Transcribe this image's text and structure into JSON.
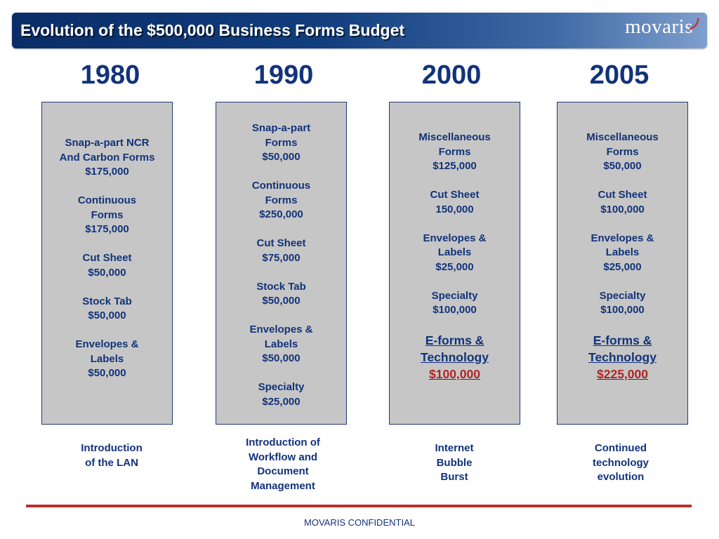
{
  "header": {
    "title": "Evolution of the $500,000 Business Forms Budget",
    "logo": "movaris",
    "colors": {
      "bar_start": "#0a2d67",
      "bar_end": "#7f9fcd",
      "text": "#12337a",
      "highlight_red": "#b02424"
    }
  },
  "columns": [
    {
      "year": "1980",
      "items": [
        {
          "lines": [
            "Snap-a-part NCR",
            "And Carbon Forms",
            "$175,000"
          ]
        },
        {
          "lines": [
            "Continuous",
            "Forms",
            "$175,000"
          ]
        },
        {
          "lines": [
            "Cut Sheet",
            "$50,000"
          ]
        },
        {
          "lines": [
            "Stock Tab",
            "$50,000"
          ]
        },
        {
          "lines": [
            "Envelopes &",
            "Labels",
            "$50,000"
          ]
        }
      ],
      "event": [
        "Introduction",
        "of the LAN"
      ]
    },
    {
      "year": "1990",
      "items": [
        {
          "lines": [
            "Snap-a-part",
            "Forms",
            "$50,000"
          ]
        },
        {
          "lines": [
            "Continuous",
            "Forms",
            "$250,000"
          ]
        },
        {
          "lines": [
            "Cut Sheet",
            "$75,000"
          ]
        },
        {
          "lines": [
            "Stock Tab",
            "$50,000"
          ]
        },
        {
          "lines": [
            "Envelopes &",
            "Labels",
            "$50,000"
          ]
        },
        {
          "lines": [
            "Specialty",
            "$25,000"
          ]
        }
      ],
      "event": [
        "Introduction of",
        "Workflow and",
        "Document",
        "Management"
      ]
    },
    {
      "year": "2000",
      "items": [
        {
          "lines": [
            "Miscellaneous",
            "Forms",
            "$125,000"
          ]
        },
        {
          "lines": [
            "Cut Sheet",
            "150,000"
          ]
        },
        {
          "lines": [
            "Envelopes &",
            "Labels",
            "$25,000"
          ]
        },
        {
          "lines": [
            "Specialty",
            "$100,000"
          ]
        }
      ],
      "highlight": {
        "lines": [
          "E-forms &",
          "Technology"
        ],
        "amount": "$100,000"
      },
      "event": [
        "Internet",
        "Bubble",
        "Burst"
      ]
    },
    {
      "year": "2005",
      "items": [
        {
          "lines": [
            "Miscellaneous",
            "Forms",
            "$50,000"
          ]
        },
        {
          "lines": [
            "Cut Sheet",
            "$100,000"
          ]
        },
        {
          "lines": [
            "Envelopes &",
            "Labels",
            "$25,000"
          ]
        },
        {
          "lines": [
            "Specialty",
            "$100,000"
          ]
        }
      ],
      "highlight": {
        "lines": [
          "E-forms &",
          "Technology"
        ],
        "amount": "$225,000"
      },
      "event": [
        "Continued",
        "technology",
        "evolution"
      ]
    }
  ],
  "footer": {
    "text": "MOVARIS CONFIDENTIAL"
  }
}
